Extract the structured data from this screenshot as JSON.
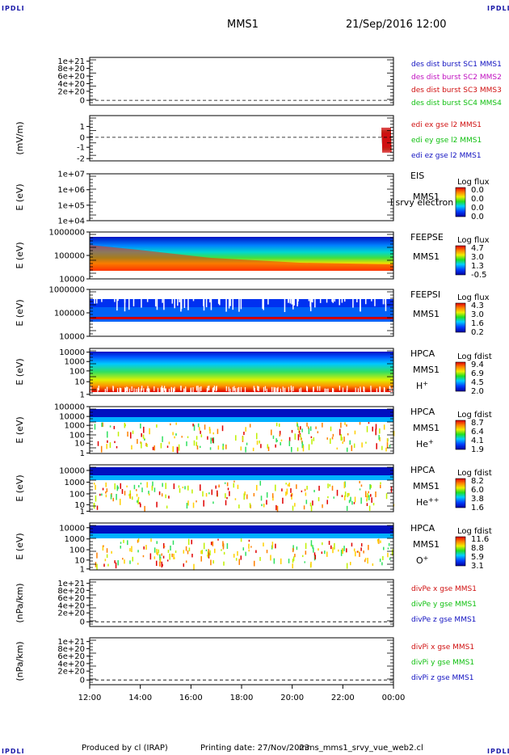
{
  "header": {
    "corner_label": "IPDLI",
    "spacecraft": "MMS1",
    "datetime": "21/Sep/2016 12:00"
  },
  "footer": {
    "produced_by": "Produced by cl (IRAP)",
    "printing_date": "Printing date: 27/Nov/2023",
    "script_name": "mms_mms1_srvy_vue_web2.cl"
  },
  "colors": {
    "red": "#d01010",
    "green": "#10c010",
    "blue": "#1010c0",
    "magenta": "#c010c0"
  },
  "chart_data": [
    {
      "id": "p1",
      "type": "line",
      "ylabel": "",
      "yticks": [
        "1e+21",
        "8e+20",
        "6e+20",
        "4e+20",
        "2e+20",
        "0"
      ],
      "legend": [
        {
          "text": "des dist burst SC1 MMS1",
          "color": "#1010c0"
        },
        {
          "text": "des dist burst SC2 MMS2",
          "color": "#c010c0"
        },
        {
          "text": "des dist burst SC3 MMS3",
          "color": "#d01010"
        },
        {
          "text": "des dist burst SC4 MMS4",
          "color": "#10c010"
        }
      ],
      "zero_line": true
    },
    {
      "id": "p2",
      "type": "line",
      "ylabel": "(mV/m)",
      "yticks": [
        "1",
        "0",
        "-1",
        "-2"
      ],
      "legend": [
        {
          "text": "edi ex gse l2 MMS1",
          "color": "#d01010"
        },
        {
          "text": "edi ey gse l2 MMS1",
          "color": "#10c010"
        },
        {
          "text": "edi ez gse l2 MMS1",
          "color": "#1010c0"
        }
      ],
      "zero_line": true,
      "series_note": "burst of activity near 23:40-00:00 spanning about -2 to +1.5 mV/m"
    },
    {
      "id": "p3",
      "type": "heatmap",
      "ylabel": "E (eV)",
      "yticks": [
        "1e+07",
        "1e+06",
        "1e+05",
        "1e+04"
      ],
      "side_labels": [
        "EIS",
        "MMS1"
      ],
      "overlay_text": "l srvy electron to",
      "colorbar": {
        "title": "Log flux",
        "labels": [
          "0.0",
          "0.0",
          "0.0",
          "0.0"
        ]
      }
    },
    {
      "id": "p4",
      "type": "heatmap",
      "ylabel": "E (eV)",
      "yticks": [
        "1000000",
        "100000",
        "10000"
      ],
      "side_labels": [
        "FEEPSE",
        "MMS1"
      ],
      "colorbar": {
        "title": "Log flux",
        "labels": [
          "4.7",
          "3.0",
          "1.3",
          "-0.5"
        ]
      }
    },
    {
      "id": "p5",
      "type": "heatmap",
      "ylabel": "E (eV)",
      "yticks": [
        "1000000",
        "100000",
        "10000"
      ],
      "side_labels": [
        "FEEPSI",
        "MMS1"
      ],
      "colorbar": {
        "title": "Log flux",
        "labels": [
          "4.3",
          "3.0",
          "1.6",
          "0.2"
        ]
      }
    },
    {
      "id": "p6",
      "type": "heatmap",
      "ylabel": "E (eV)",
      "yticks": [
        "10000",
        "1000",
        "100",
        "10",
        "1"
      ],
      "side_labels": [
        "HPCA",
        "MMS1"
      ],
      "species": "H",
      "species_sup": "+",
      "colorbar": {
        "title": "Log fdist",
        "labels": [
          "9.4",
          "6.9",
          "4.5",
          "2.0"
        ]
      }
    },
    {
      "id": "p7",
      "type": "heatmap",
      "ylabel": "E (eV)",
      "yticks": [
        "100000",
        "10000",
        "1000",
        "100",
        "10",
        "1"
      ],
      "side_labels": [
        "HPCA",
        "MMS1"
      ],
      "species": "He",
      "species_sup": "+",
      "colorbar": {
        "title": "Log fdist",
        "labels": [
          "8.7",
          "6.4",
          "4.1",
          "1.9"
        ]
      }
    },
    {
      "id": "p8",
      "type": "heatmap",
      "ylabel": "E (eV)",
      "yticks": [
        "10000",
        "1000",
        "100",
        "10",
        "1"
      ],
      "side_labels": [
        "HPCA",
        "MMS1"
      ],
      "species": "He",
      "species_sup": "++",
      "colorbar": {
        "title": "Log fdist",
        "labels": [
          "8.2",
          "6.0",
          "3.8",
          "1.6"
        ]
      }
    },
    {
      "id": "p9",
      "type": "heatmap",
      "ylabel": "E (eV)",
      "yticks": [
        "10000",
        "1000",
        "100",
        "10",
        "1"
      ],
      "side_labels": [
        "HPCA",
        "MMS1"
      ],
      "species": "O",
      "species_sup": "+",
      "colorbar": {
        "title": "Log fdist",
        "labels": [
          "11.6",
          "8.8",
          "5.9",
          "3.1"
        ]
      }
    },
    {
      "id": "p10",
      "type": "line",
      "ylabel": "(nPa/km)",
      "yticks": [
        "1e+21",
        "8e+20",
        "6e+20",
        "4e+20",
        "2e+20",
        "0"
      ],
      "legend": [
        {
          "text": "divPe x gse MMS1",
          "color": "#d01010"
        },
        {
          "text": "divPe y gse MMS1",
          "color": "#10c010"
        },
        {
          "text": "divPe z gse MMS1",
          "color": "#1010c0"
        }
      ],
      "zero_line": true
    },
    {
      "id": "p11",
      "type": "line",
      "ylabel": "(nPa/km)",
      "yticks": [
        "1e+21",
        "8e+20",
        "6e+20",
        "4e+20",
        "2e+20",
        "0"
      ],
      "legend": [
        {
          "text": "divPi x gse MMS1",
          "color": "#d01010"
        },
        {
          "text": "divPi y gse MMS1",
          "color": "#10c010"
        },
        {
          "text": "divPi z gse MMS1",
          "color": "#1010c0"
        }
      ],
      "zero_line": true
    }
  ],
  "x_axis": {
    "ticks": [
      "12:00",
      "14:00",
      "16:00",
      "18:00",
      "20:00",
      "22:00",
      "00:00"
    ]
  }
}
